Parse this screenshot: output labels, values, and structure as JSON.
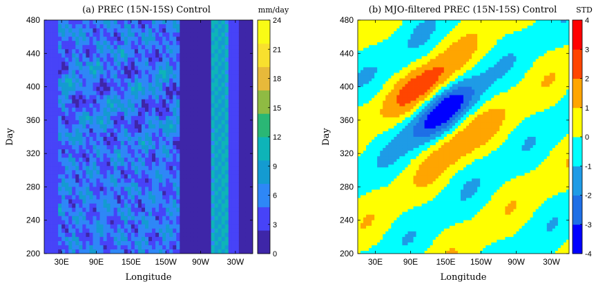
{
  "chart_data": [
    {
      "type": "heatmap",
      "title": "(a) PREC (15N-15S) Control",
      "xlabel": "Longitude",
      "ylabel": "Day",
      "x_ticks": [
        "30E",
        "90E",
        "150E",
        "150W",
        "90W",
        "30W"
      ],
      "x_tick_lon": [
        30,
        90,
        150,
        210,
        270,
        330
      ],
      "xlim_lon": [
        0,
        360
      ],
      "y_ticks": [
        200,
        240,
        280,
        320,
        360,
        400,
        440,
        480
      ],
      "ylim": [
        200,
        480
      ],
      "colorbar": {
        "label": "mm/day",
        "range": [
          0,
          24
        ],
        "ticks": [
          0,
          3,
          6,
          9,
          12,
          15,
          18,
          21,
          24
        ],
        "colors": [
          "#3e26a8",
          "#4743f8",
          "#2e87f7",
          "#149bd1",
          "#0eb4b8",
          "#2ab775",
          "#8fbb43",
          "#e7b93a",
          "#f8e02e",
          "#f9fb15"
        ]
      }
    },
    {
      "type": "heatmap",
      "title": "(b) MJO-filtered PREC (15N-15S) Control",
      "xlabel": "Longitude",
      "ylabel": "Day",
      "x_ticks": [
        "30E",
        "90E",
        "150E",
        "150W",
        "90W",
        "30W"
      ],
      "x_tick_lon": [
        30,
        90,
        150,
        210,
        270,
        330
      ],
      "xlim_lon": [
        0,
        360
      ],
      "y_ticks": [
        200,
        240,
        280,
        320,
        360,
        400,
        440,
        480
      ],
      "ylim": [
        200,
        480
      ],
      "colorbar": {
        "label": "STD",
        "range": [
          -4,
          4
        ],
        "ticks": [
          -4,
          -3,
          -2,
          -1,
          0,
          1,
          2,
          3,
          4
        ],
        "colors": [
          "#0000ff",
          "#1e6fe6",
          "#1e9be6",
          "#00ffff",
          "#ffff00",
          "#ffa500",
          "#ff4500",
          "#ff0000"
        ]
      }
    }
  ]
}
